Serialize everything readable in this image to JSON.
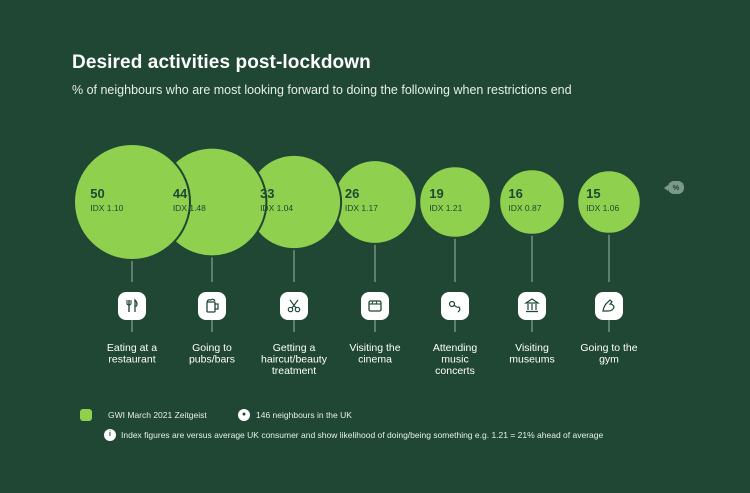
{
  "header": {
    "title": "Desired activities post-lockdown",
    "subtitle": "% of neighbours who are most looking forward to doing the following when restrictions end"
  },
  "unit_badge": "%",
  "chart_data": {
    "type": "bubble",
    "title": "Desired activities post-lockdown",
    "subtitle": "% of neighbours who are most looking forward to doing the following when restrictions end",
    "unit": "%",
    "colors": {
      "bubble": "#8fd14f",
      "background": "#1f4733",
      "text": "#1f4733"
    },
    "categories": [
      [
        "Eating at a",
        "restaurant"
      ],
      [
        "Going to",
        "pubs/bars"
      ],
      [
        "Getting a",
        "haircut/beauty",
        "treatment"
      ],
      [
        "Visiting the",
        "cinema"
      ],
      [
        "Attending",
        "music",
        "concerts"
      ],
      [
        "Visiting",
        "museums"
      ],
      [
        "Going to the",
        "gym"
      ]
    ],
    "values": [
      50,
      44,
      33,
      26,
      19,
      16,
      15
    ],
    "index_labels": [
      "IDX 1.10",
      "IDX 1.48",
      "IDX 1.04",
      "IDX 1.17",
      "IDX 1.21",
      "IDX 0.87",
      "IDX 1.06"
    ],
    "icons": [
      "cutlery-icon",
      "beer-mug-icon",
      "scissors-icon",
      "cinema-icon",
      "music-note-icon",
      "museum-icon",
      "flexed-arm-icon"
    ]
  },
  "footer": {
    "source": "GWI March 2021 Zeitgeist",
    "sample": "146 neighbours in the UK",
    "note": "Index figures are versus average UK consumer and show likelihood of doing/being something e.g. 1.21 = 21% ahead of average"
  }
}
